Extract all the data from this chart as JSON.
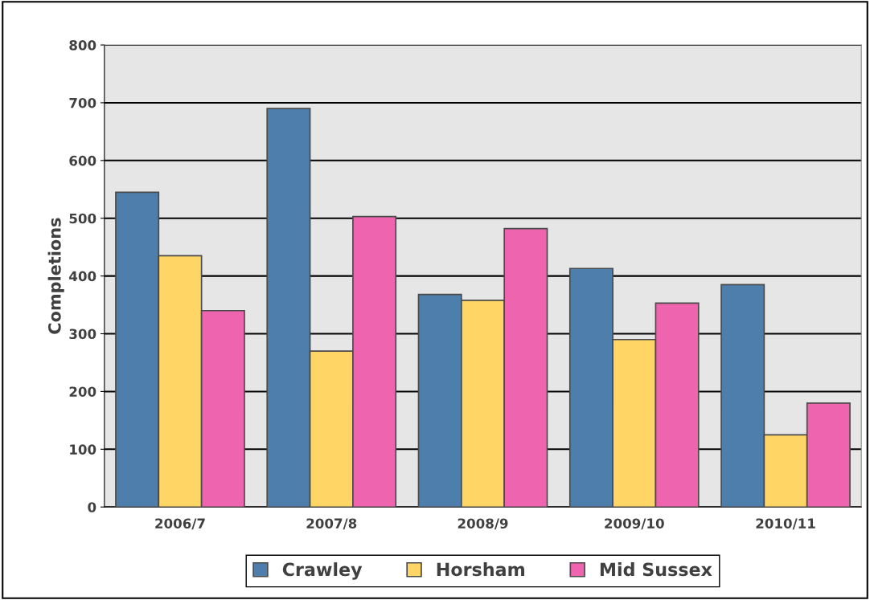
{
  "chart_data": {
    "type": "bar",
    "ylabel": "Completions",
    "categories": [
      "2006/7",
      "2007/8",
      "2008/9",
      "2009/10",
      "2010/11"
    ],
    "series": [
      {
        "name": "Crawley",
        "color": "#4e7eab",
        "values": [
          545,
          690,
          368,
          413,
          385
        ]
      },
      {
        "name": "Horsham",
        "color": "#ffd566",
        "values": [
          435,
          270,
          358,
          290,
          125
        ]
      },
      {
        "name": "Mid Sussex",
        "color": "#ef64ae",
        "values": [
          340,
          503,
          482,
          353,
          180
        ]
      }
    ],
    "ylim": [
      0,
      800
    ],
    "yticks": [
      0,
      100,
      200,
      300,
      400,
      500,
      600,
      700,
      800
    ],
    "grid": "y",
    "legend": "bottom"
  }
}
